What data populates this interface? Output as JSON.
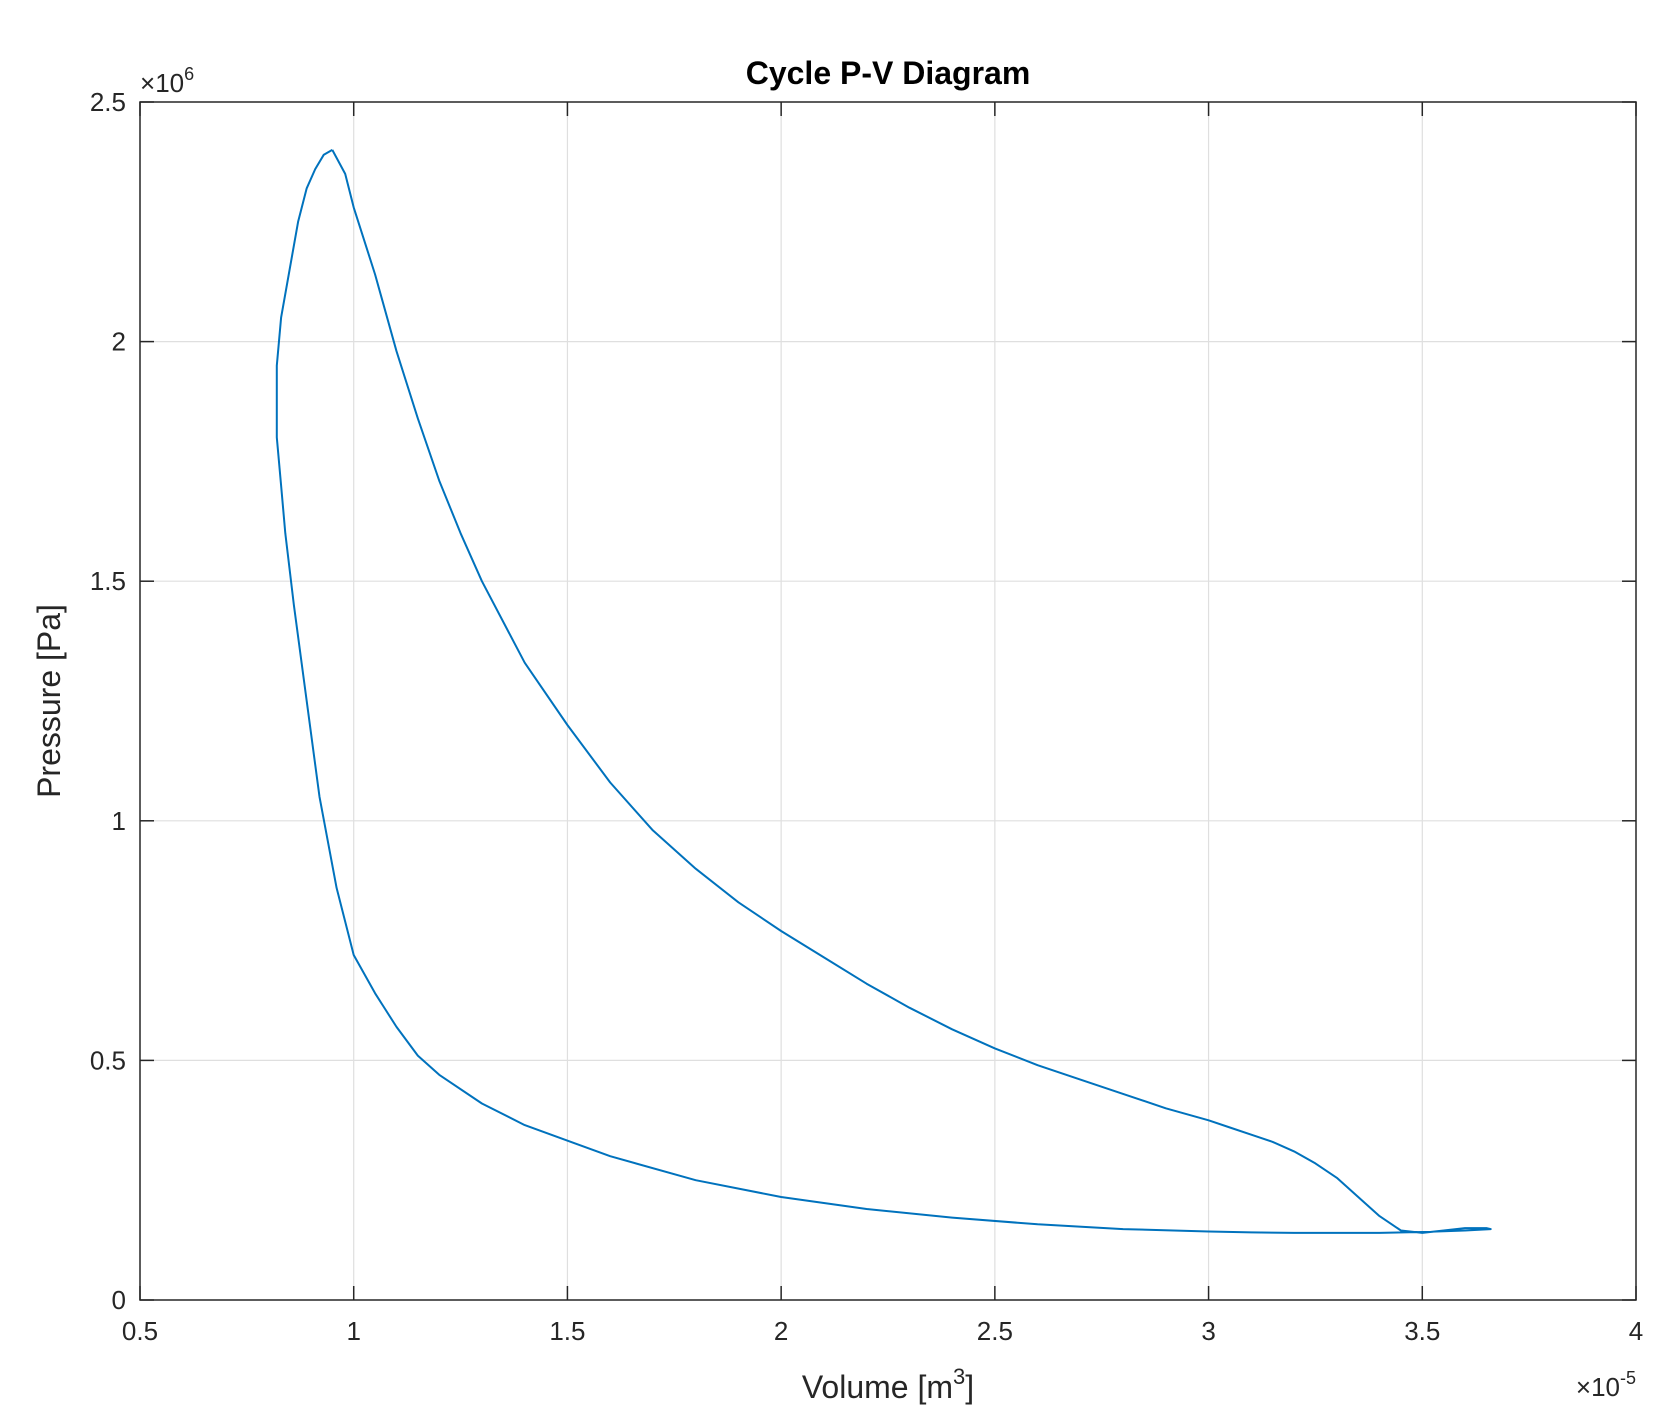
{
  "chart_data": {
    "type": "line",
    "title": "Cycle P-V Diagram",
    "xlabel": "Volume [m",
    "xlabel_sup": "3",
    "xlabel_end": "]",
    "ylabel": "Pressure [Pa]",
    "x_multiplier": {
      "base": "10",
      "exp": "-5"
    },
    "y_multiplier": {
      "base": "10",
      "exp": "6"
    },
    "xlim": [
      0.5,
      4
    ],
    "ylim": [
      0,
      2.5
    ],
    "xticks": [
      0.5,
      1,
      1.5,
      2,
      2.5,
      3,
      3.5,
      4
    ],
    "xtick_labels": [
      "0.5",
      "1",
      "1.5",
      "2",
      "2.5",
      "3",
      "3.5",
      "4"
    ],
    "yticks": [
      0,
      0.5,
      1,
      1.5,
      2,
      2.5
    ],
    "ytick_labels": [
      "0",
      "0.5",
      "1",
      "1.5",
      "2",
      "2.5"
    ],
    "grid": true,
    "series": [
      {
        "color": "#0072BD",
        "x": [
          0.95,
          0.98,
          1.0,
          1.05,
          1.1,
          1.15,
          1.2,
          1.25,
          1.3,
          1.4,
          1.5,
          1.6,
          1.7,
          1.8,
          1.9,
          2.0,
          2.1,
          2.2,
          2.3,
          2.4,
          2.5,
          2.6,
          2.7,
          2.8,
          2.9,
          3.0,
          3.05,
          3.1,
          3.15,
          3.2,
          3.25,
          3.3,
          3.35,
          3.4,
          3.45,
          3.5,
          3.55,
          3.6,
          3.65,
          3.66,
          3.6,
          3.5,
          3.4,
          3.3,
          3.2,
          3.1,
          3.0,
          2.8,
          2.6,
          2.4,
          2.2,
          2.0,
          1.8,
          1.6,
          1.4,
          1.3,
          1.2,
          1.15,
          1.1,
          1.05,
          1.0,
          0.96,
          0.92,
          0.89,
          0.86,
          0.84,
          0.83,
          0.82,
          0.82,
          0.83,
          0.85,
          0.87,
          0.89,
          0.91,
          0.93,
          0.95
        ],
        "y": [
          2.4,
          2.35,
          2.28,
          2.14,
          1.98,
          1.84,
          1.71,
          1.6,
          1.5,
          1.33,
          1.2,
          1.08,
          0.98,
          0.9,
          0.83,
          0.77,
          0.715,
          0.66,
          0.61,
          0.565,
          0.525,
          0.49,
          0.46,
          0.43,
          0.4,
          0.375,
          0.36,
          0.345,
          0.33,
          0.31,
          0.285,
          0.255,
          0.215,
          0.175,
          0.145,
          0.14,
          0.145,
          0.15,
          0.15,
          0.148,
          0.145,
          0.142,
          0.14,
          0.14,
          0.14,
          0.141,
          0.143,
          0.148,
          0.158,
          0.172,
          0.19,
          0.215,
          0.25,
          0.3,
          0.365,
          0.41,
          0.47,
          0.51,
          0.57,
          0.64,
          0.72,
          0.86,
          1.05,
          1.25,
          1.45,
          1.6,
          1.7,
          1.8,
          1.95,
          2.05,
          2.15,
          2.25,
          2.32,
          2.36,
          2.39,
          2.4
        ]
      }
    ]
  }
}
